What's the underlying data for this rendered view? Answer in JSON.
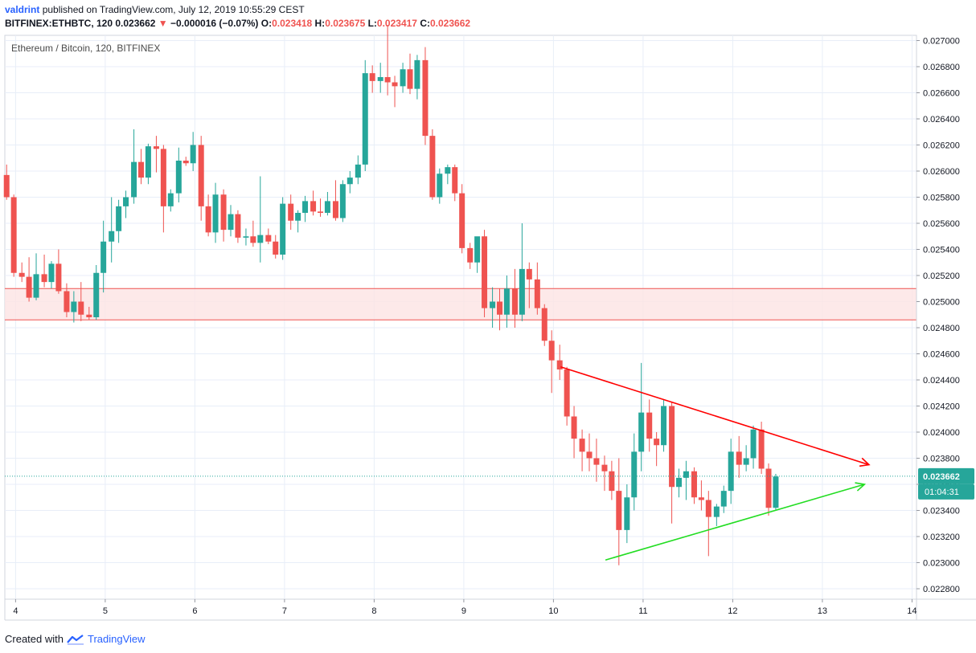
{
  "header": {
    "author": "valdrint",
    "published_text": "published on TradingView.com, July 12, 2019 10:55:29 CEST",
    "symbol_line": "BITFINEX:ETHBTC, 120",
    "last_price": "0.023662",
    "change_arrow": "▼",
    "change": "−0.000016 (−0.07%)",
    "o_label": "O:",
    "o_value": "0.023418",
    "h_label": "H:",
    "h_value": "0.023675",
    "l_label": "L:",
    "l_value": "0.023417",
    "c_label": "C:",
    "c_value": "0.023662"
  },
  "footer": {
    "created_with": "Created with",
    "brand": "TradingView"
  },
  "chart_data": {
    "type": "candlestick",
    "title": "Ethereum / Bitcoin, 120, BITFINEX",
    "x_ticks": [
      "4",
      "5",
      "6",
      "7",
      "8",
      "9",
      "10",
      "11",
      "12",
      "13",
      "14"
    ],
    "y_ticks": [
      "0.027000",
      "0.026800",
      "0.026600",
      "0.026400",
      "0.026200",
      "0.026000",
      "0.025800",
      "0.025600",
      "0.025400",
      "0.025200",
      "0.025000",
      "0.024800",
      "0.024600",
      "0.024400",
      "0.024200",
      "0.024000",
      "0.023800",
      "0.023600",
      "0.023400",
      "0.023200",
      "0.023000",
      "0.022800"
    ],
    "y_range": [
      0.02272,
      0.02704
    ],
    "x_range": [
      3.88,
      14.05
    ],
    "current_price_label": "0.023662",
    "countdown_label": "01:04:31",
    "current_price": 0.023662,
    "colors": {
      "up": "#26a69a",
      "down": "#ef5350",
      "grid": "#e8eef8",
      "zone_fill": "#fde3e3",
      "zone_line": "#ef5350",
      "resistance_line": "#ff0000",
      "support_line": "#22dd22",
      "price_line": "#26a69a"
    },
    "support_zone": [
      0.02486,
      0.0251
    ],
    "resistance_trendline": {
      "from": [
        10.08,
        0.0245
      ],
      "to": [
        13.52,
        0.02375
      ]
    },
    "support_trendline": {
      "from": [
        10.58,
        0.02302
      ],
      "to": [
        13.47,
        0.0236
      ]
    },
    "candles": [
      [
        3.9,
        0.02597,
        0.02605,
        0.02578,
        0.0258
      ],
      [
        3.98,
        0.0258,
        0.02582,
        0.02519,
        0.02522
      ],
      [
        4.07,
        0.02522,
        0.0253,
        0.02515,
        0.02519
      ],
      [
        4.15,
        0.02519,
        0.02534,
        0.025,
        0.02503
      ],
      [
        4.23,
        0.02503,
        0.02537,
        0.02501,
        0.02521
      ],
      [
        4.32,
        0.02521,
        0.02536,
        0.02511,
        0.02515
      ],
      [
        4.4,
        0.02515,
        0.02531,
        0.0251,
        0.02529
      ],
      [
        4.48,
        0.02529,
        0.0254,
        0.02506,
        0.02508
      ],
      [
        4.57,
        0.02508,
        0.02514,
        0.02488,
        0.02492
      ],
      [
        4.65,
        0.02492,
        0.02508,
        0.02484,
        0.025
      ],
      [
        4.73,
        0.025,
        0.02515,
        0.02485,
        0.0249
      ],
      [
        4.82,
        0.0249,
        0.02496,
        0.02486,
        0.02488
      ],
      [
        4.9,
        0.02488,
        0.02528,
        0.02486,
        0.02522
      ],
      [
        4.98,
        0.02522,
        0.02562,
        0.02507,
        0.02546
      ],
      [
        5.07,
        0.02546,
        0.0258,
        0.0253,
        0.02554
      ],
      [
        5.15,
        0.02554,
        0.02578,
        0.02545,
        0.02573
      ],
      [
        5.23,
        0.02573,
        0.02585,
        0.02564,
        0.0258
      ],
      [
        5.32,
        0.0258,
        0.02632,
        0.02575,
        0.02607
      ],
      [
        5.4,
        0.02607,
        0.02617,
        0.0259,
        0.02595
      ],
      [
        5.48,
        0.02595,
        0.02621,
        0.0259,
        0.02619
      ],
      [
        5.57,
        0.02619,
        0.02627,
        0.02599,
        0.02617
      ],
      [
        5.65,
        0.02617,
        0.0262,
        0.02553,
        0.02573
      ],
      [
        5.73,
        0.02573,
        0.02586,
        0.02569,
        0.02583
      ],
      [
        5.82,
        0.02583,
        0.02618,
        0.02576,
        0.02608
      ],
      [
        5.9,
        0.02608,
        0.02611,
        0.02604,
        0.02606
      ],
      [
        5.98,
        0.02606,
        0.0263,
        0.026,
        0.0262
      ],
      [
        6.07,
        0.0262,
        0.02627,
        0.02562,
        0.02573
      ],
      [
        6.15,
        0.02573,
        0.02582,
        0.0255,
        0.02553
      ],
      [
        6.23,
        0.02553,
        0.02591,
        0.02545,
        0.02582
      ],
      [
        6.32,
        0.02582,
        0.02586,
        0.02546,
        0.02555
      ],
      [
        6.4,
        0.02555,
        0.02574,
        0.0255,
        0.02567
      ],
      [
        6.48,
        0.02567,
        0.0257,
        0.02545,
        0.02549
      ],
      [
        6.57,
        0.02549,
        0.02556,
        0.02543,
        0.0255
      ],
      [
        6.65,
        0.0255,
        0.02562,
        0.02542,
        0.02545
      ],
      [
        6.73,
        0.02545,
        0.02596,
        0.0253,
        0.02551
      ],
      [
        6.82,
        0.02551,
        0.02556,
        0.02544,
        0.02546
      ],
      [
        6.9,
        0.02546,
        0.02551,
        0.02533,
        0.02536
      ],
      [
        6.98,
        0.02536,
        0.0258,
        0.02532,
        0.02575
      ],
      [
        7.07,
        0.02575,
        0.02582,
        0.02555,
        0.02562
      ],
      [
        7.15,
        0.02562,
        0.0257,
        0.02553,
        0.02568
      ],
      [
        7.23,
        0.02568,
        0.02581,
        0.02561,
        0.02577
      ],
      [
        7.32,
        0.02577,
        0.02585,
        0.02566,
        0.02569
      ],
      [
        7.4,
        0.02569,
        0.02579,
        0.02565,
        0.02568
      ],
      [
        7.48,
        0.02568,
        0.02584,
        0.02566,
        0.02577
      ],
      [
        7.57,
        0.02577,
        0.02593,
        0.02562,
        0.02564
      ],
      [
        7.65,
        0.02564,
        0.02593,
        0.02561,
        0.0259
      ],
      [
        7.73,
        0.0259,
        0.026,
        0.02583,
        0.02595
      ],
      [
        7.82,
        0.02595,
        0.02612,
        0.0259,
        0.02605
      ],
      [
        7.9,
        0.02605,
        0.02685,
        0.026,
        0.02675
      ],
      [
        7.98,
        0.02675,
        0.02681,
        0.0266,
        0.02669
      ],
      [
        8.07,
        0.02669,
        0.02683,
        0.0266,
        0.02672
      ],
      [
        8.15,
        0.02672,
        0.02712,
        0.02658,
        0.02668
      ],
      [
        8.23,
        0.02668,
        0.02673,
        0.02649,
        0.02665
      ],
      [
        8.32,
        0.02665,
        0.02683,
        0.0266,
        0.02678
      ],
      [
        8.4,
        0.02678,
        0.0269,
        0.02659,
        0.02663
      ],
      [
        8.48,
        0.02663,
        0.02689,
        0.02655,
        0.02685
      ],
      [
        8.57,
        0.02685,
        0.02695,
        0.0262,
        0.02627
      ],
      [
        8.65,
        0.02627,
        0.02632,
        0.02578,
        0.0258
      ],
      [
        8.73,
        0.0258,
        0.02602,
        0.02575,
        0.02598
      ],
      [
        8.82,
        0.02598,
        0.02605,
        0.0259,
        0.02603
      ],
      [
        8.9,
        0.02603,
        0.02605,
        0.02577,
        0.02583
      ],
      [
        8.98,
        0.02583,
        0.0259,
        0.02537,
        0.02541
      ],
      [
        9.07,
        0.02541,
        0.02545,
        0.02525,
        0.0253
      ],
      [
        9.15,
        0.0253,
        0.02547,
        0.02522,
        0.0255
      ],
      [
        9.23,
        0.0255,
        0.02555,
        0.02488,
        0.02495
      ],
      [
        9.32,
        0.02495,
        0.02511,
        0.0248,
        0.025
      ],
      [
        9.4,
        0.025,
        0.0251,
        0.02478,
        0.0249
      ],
      [
        9.48,
        0.0249,
        0.0252,
        0.0248,
        0.0251
      ],
      [
        9.57,
        0.0251,
        0.02525,
        0.0248,
        0.0249
      ],
      [
        9.65,
        0.0249,
        0.0256,
        0.02485,
        0.02525
      ],
      [
        9.73,
        0.02525,
        0.0253,
        0.02495,
        0.02517
      ],
      [
        9.82,
        0.02517,
        0.0253,
        0.0249,
        0.02495
      ],
      [
        9.9,
        0.02495,
        0.02498,
        0.02466,
        0.0247
      ],
      [
        9.98,
        0.0247,
        0.02478,
        0.0243,
        0.02455
      ],
      [
        10.07,
        0.02455,
        0.02467,
        0.0244,
        0.02448
      ],
      [
        10.15,
        0.02448,
        0.0245,
        0.02405,
        0.02412
      ],
      [
        10.23,
        0.02412,
        0.0242,
        0.0238,
        0.02395
      ],
      [
        10.32,
        0.02395,
        0.02402,
        0.0237,
        0.02385
      ],
      [
        10.4,
        0.02385,
        0.02399,
        0.0237,
        0.0238
      ],
      [
        10.48,
        0.0238,
        0.02395,
        0.02362,
        0.02375
      ],
      [
        10.57,
        0.02375,
        0.02382,
        0.02355,
        0.0237
      ],
      [
        10.65,
        0.0237,
        0.02378,
        0.02348,
        0.02355
      ],
      [
        10.73,
        0.02355,
        0.0238,
        0.02298,
        0.02325
      ],
      [
        10.82,
        0.02325,
        0.0236,
        0.02315,
        0.0235
      ],
      [
        10.9,
        0.0235,
        0.02399,
        0.0234,
        0.02385
      ],
      [
        10.98,
        0.02385,
        0.02453,
        0.0237,
        0.02415
      ],
      [
        11.07,
        0.02415,
        0.02425,
        0.02385,
        0.02395
      ],
      [
        11.15,
        0.02395,
        0.024,
        0.02374,
        0.0239
      ],
      [
        11.23,
        0.0239,
        0.02425,
        0.02385,
        0.0242
      ],
      [
        11.32,
        0.0242,
        0.02423,
        0.0233,
        0.02358
      ],
      [
        11.4,
        0.02358,
        0.02372,
        0.0235,
        0.02365
      ],
      [
        11.48,
        0.02365,
        0.02378,
        0.02348,
        0.0237
      ],
      [
        11.57,
        0.0237,
        0.02373,
        0.02345,
        0.0235
      ],
      [
        11.65,
        0.0235,
        0.02363,
        0.0234,
        0.02348
      ],
      [
        11.73,
        0.02348,
        0.02355,
        0.02305,
        0.02335
      ],
      [
        11.82,
        0.02335,
        0.02345,
        0.02328,
        0.02343
      ],
      [
        11.9,
        0.02343,
        0.02359,
        0.02338,
        0.02355
      ],
      [
        11.98,
        0.02355,
        0.02395,
        0.02345,
        0.02385
      ],
      [
        12.07,
        0.02385,
        0.02397,
        0.02365,
        0.02375
      ],
      [
        12.15,
        0.02375,
        0.0239,
        0.0237,
        0.0238
      ],
      [
        12.23,
        0.0238,
        0.02405,
        0.02372,
        0.02402
      ],
      [
        12.32,
        0.02402,
        0.02408,
        0.02368,
        0.02372
      ],
      [
        12.4,
        0.02372,
        0.02376,
        0.02336,
        0.02342
      ],
      [
        12.48,
        0.02342,
        0.02368,
        0.0234,
        0.02366
      ]
    ]
  }
}
